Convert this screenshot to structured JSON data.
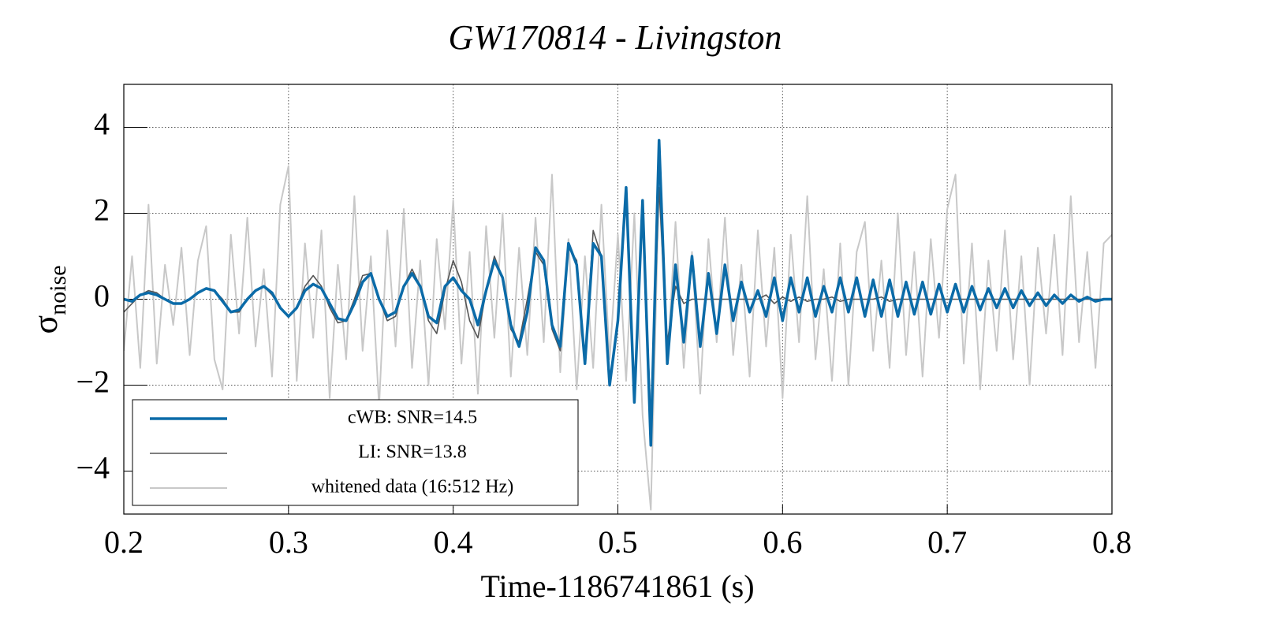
{
  "chart_data": {
    "type": "line",
    "title": "GW170814 - Livingston",
    "x_label": "Time-1186741861 (s)",
    "y_label": "σ",
    "y_label_subscript": "noise",
    "xlim": [
      0.2,
      0.8
    ],
    "ylim": [
      -5,
      5
    ],
    "xticks": [
      0.2,
      0.3,
      0.4,
      0.5,
      0.6,
      0.7,
      0.8
    ],
    "yticks": [
      {
        "value": -4,
        "label": "−4"
      },
      {
        "value": -2,
        "label": "−2"
      },
      0,
      2,
      4
    ],
    "grid": true,
    "legend": "lower left",
    "x": [
      0.2,
      0.205,
      0.21,
      0.215,
      0.22,
      0.225,
      0.23,
      0.235,
      0.24,
      0.245,
      0.25,
      0.255,
      0.26,
      0.265,
      0.27,
      0.275,
      0.28,
      0.285,
      0.29,
      0.295,
      0.3,
      0.305,
      0.31,
      0.315,
      0.32,
      0.325,
      0.33,
      0.335,
      0.34,
      0.345,
      0.35,
      0.355,
      0.36,
      0.365,
      0.37,
      0.375,
      0.38,
      0.385,
      0.39,
      0.395,
      0.4,
      0.405,
      0.41,
      0.415,
      0.42,
      0.425,
      0.43,
      0.435,
      0.44,
      0.445,
      0.45,
      0.455,
      0.46,
      0.465,
      0.47,
      0.475,
      0.48,
      0.485,
      0.49,
      0.495,
      0.5,
      0.505,
      0.51,
      0.515,
      0.52,
      0.525,
      0.53,
      0.535,
      0.54,
      0.545,
      0.55,
      0.555,
      0.56,
      0.565,
      0.57,
      0.575,
      0.58,
      0.585,
      0.59,
      0.595,
      0.6,
      0.605,
      0.61,
      0.615,
      0.62,
      0.625,
      0.63,
      0.635,
      0.64,
      0.645,
      0.65,
      0.655,
      0.66,
      0.665,
      0.67,
      0.675,
      0.68,
      0.685,
      0.69,
      0.695,
      0.7,
      0.705,
      0.71,
      0.715,
      0.72,
      0.725,
      0.73,
      0.735,
      0.74,
      0.745,
      0.75,
      0.755,
      0.76,
      0.765,
      0.77,
      0.775,
      0.78,
      0.785,
      0.79,
      0.795,
      0.8
    ],
    "series": [
      {
        "name": "whitened data (16:512 Hz)",
        "color": "#c8c8c8",
        "values": [
          -1.2,
          1.0,
          -1.6,
          2.2,
          -1.5,
          0.8,
          -0.6,
          1.2,
          -1.3,
          0.9,
          1.7,
          -1.4,
          -2.1,
          1.5,
          -0.8,
          1.9,
          -1.1,
          0.7,
          -1.8,
          2.2,
          3.1,
          -1.9,
          1.3,
          -0.9,
          1.6,
          -2.3,
          0.8,
          -1.4,
          2.4,
          -1.2,
          1.0,
          -2.5,
          1.6,
          -1.1,
          2.1,
          -1.6,
          0.9,
          -2.0,
          1.4,
          -0.7,
          2.3,
          -1.5,
          1.1,
          -2.2,
          1.7,
          -0.9,
          2.0,
          -1.8,
          1.2,
          -1.3,
          1.9,
          -1.0,
          2.9,
          -1.7,
          1.4,
          -2.1,
          1.0,
          -1.6,
          2.2,
          -1.4,
          1.5,
          -1.9,
          2.0,
          -2.7,
          -4.9,
          2.7,
          -1.5,
          1.8,
          -1.6,
          1.1,
          -2.2,
          1.4,
          -1.0,
          1.9,
          -1.3,
          0.8,
          -1.8,
          1.6,
          -1.1,
          1.2,
          -2.3,
          1.5,
          -1.0,
          2.4,
          -1.4,
          0.7,
          -1.9,
          1.3,
          -2.0,
          1.1,
          1.8,
          -1.2,
          0.9,
          -1.6,
          2.0,
          -1.3,
          1.1,
          -1.8,
          1.4,
          -0.9,
          2.1,
          2.9,
          -1.5,
          1.3,
          -2.1,
          0.9,
          -1.2,
          1.6,
          -1.4,
          1.0,
          -2.0,
          1.2,
          -0.8,
          1.5,
          -1.3,
          2.4,
          -1.0,
          1.1,
          -1.6,
          1.3,
          1.5
        ]
      },
      {
        "name": "LI: SNR=13.8",
        "color": "#555555",
        "values": [
          -0.3,
          -0.1,
          0.1,
          0.2,
          0.15,
          0,
          -0.1,
          -0.1,
          0,
          0.15,
          0.25,
          0.2,
          0,
          -0.3,
          -0.3,
          0,
          0.2,
          0.3,
          0.1,
          -0.2,
          -0.4,
          -0.2,
          0.3,
          0.55,
          0.3,
          -0.2,
          -0.55,
          -0.5,
          0,
          0.55,
          0.6,
          0,
          -0.5,
          -0.4,
          0.3,
          0.7,
          0.3,
          -0.5,
          -0.8,
          0.2,
          0.9,
          0.4,
          -0.5,
          -0.9,
          0.2,
          1.0,
          0.5,
          -0.7,
          -1.0,
          0,
          1.1,
          0.8,
          -0.7,
          -1.2,
          1.2,
          0.9,
          -1.4,
          1.6,
          1.0,
          -1.9,
          -0.5,
          2.4,
          -2.2,
          2.1,
          -2.8,
          2.6,
          -1.0,
          0.3,
          -0.1,
          0,
          0,
          0,
          0,
          0,
          0,
          0,
          0,
          0,
          0.1,
          -0.1,
          0.05,
          -0.05,
          0.05,
          -0.05,
          0,
          0,
          0.05,
          -0.05,
          0,
          0,
          0,
          0,
          0.05,
          -0.05,
          0,
          0,
          0,
          0,
          0,
          0,
          0,
          0,
          0,
          0,
          0,
          0,
          0,
          0,
          0,
          0,
          0,
          0,
          0,
          0,
          0,
          0,
          0,
          0,
          0,
          0,
          0
        ]
      },
      {
        "name": "cWB: SNR=14.5",
        "color": "#0b6ba8",
        "values": [
          0,
          -0.05,
          0.1,
          0.15,
          0.1,
          0,
          -0.1,
          -0.1,
          0,
          0.15,
          0.25,
          0.2,
          -0.05,
          -0.3,
          -0.25,
          0,
          0.2,
          0.3,
          0.15,
          -0.2,
          -0.4,
          -0.2,
          0.2,
          0.35,
          0.25,
          -0.1,
          -0.45,
          -0.5,
          -0.1,
          0.4,
          0.6,
          0,
          -0.4,
          -0.3,
          0.3,
          0.6,
          0.3,
          -0.4,
          -0.55,
          0.3,
          0.5,
          0.2,
          0,
          -0.6,
          0.2,
          0.9,
          0.5,
          -0.6,
          -1.1,
          -0.3,
          1.2,
          0.9,
          -0.6,
          -1.1,
          1.3,
          0.8,
          -1.5,
          1.3,
          1.0,
          -2.0,
          -0.5,
          2.6,
          -2.4,
          2.3,
          -3.4,
          3.7,
          -1.5,
          0.8,
          -1.0,
          1.0,
          -1.1,
          0.6,
          -0.8,
          0.8,
          -0.5,
          0.4,
          -0.3,
          0.2,
          -0.4,
          0.5,
          -0.5,
          0.5,
          -0.3,
          0.5,
          -0.4,
          0.3,
          -0.3,
          0.5,
          -0.3,
          0.5,
          -0.4,
          0.45,
          -0.4,
          0.45,
          -0.4,
          0.4,
          -0.35,
          0.4,
          -0.35,
          0.35,
          -0.3,
          0.35,
          -0.3,
          0.3,
          -0.25,
          0.25,
          -0.2,
          0.25,
          -0.2,
          0.2,
          -0.15,
          0.15,
          -0.15,
          0.1,
          -0.1,
          0.1,
          -0.05,
          0.05,
          -0.05,
          0,
          0
        ]
      }
    ]
  }
}
